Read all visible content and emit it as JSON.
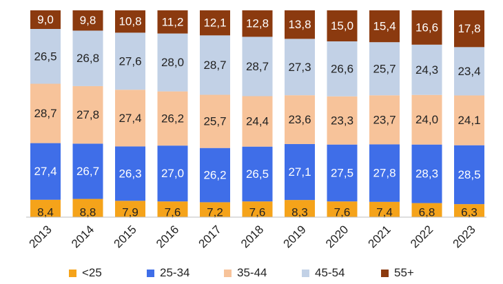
{
  "chart_data": {
    "type": "bar",
    "stacked": true,
    "orientation": "vertical",
    "categories": [
      "2013",
      "2014",
      "2015",
      "2016",
      "2017",
      "2018",
      "2019",
      "2020",
      "2021",
      "2022",
      "2023"
    ],
    "series": [
      {
        "name": "<25",
        "color": "#f5a31a",
        "values": [
          8.4,
          8.8,
          7.9,
          7.6,
          7.2,
          7.6,
          8.3,
          7.6,
          7.4,
          6.8,
          6.3
        ],
        "labels": [
          "8,4",
          "8,8",
          "7,9",
          "7,6",
          "7,2",
          "7,6",
          "8,3",
          "7,6",
          "7,4",
          "6,8",
          "6,3"
        ]
      },
      {
        "name": "25-34",
        "color": "#3f6ee8",
        "values": [
          27.4,
          26.7,
          26.3,
          27.0,
          26.2,
          26.5,
          27.1,
          27.5,
          27.8,
          28.3,
          28.5
        ],
        "labels": [
          "27,4",
          "26,7",
          "26,3",
          "27,0",
          "26,2",
          "26,5",
          "27,1",
          "27,5",
          "27,8",
          "28,3",
          "28,5"
        ]
      },
      {
        "name": "35-44",
        "color": "#f7c39a",
        "values": [
          28.7,
          27.8,
          27.4,
          26.2,
          25.7,
          24.4,
          23.6,
          23.3,
          23.7,
          24.0,
          24.1
        ],
        "labels": [
          "28,7",
          "27,8",
          "27,4",
          "26,2",
          "25,7",
          "24,4",
          "23,6",
          "23,3",
          "23,7",
          "24,0",
          "24,1"
        ]
      },
      {
        "name": "45-54",
        "color": "#c2d1e6",
        "values": [
          26.5,
          26.8,
          27.6,
          28.0,
          28.7,
          28.7,
          27.3,
          26.6,
          25.7,
          24.3,
          23.4
        ],
        "labels": [
          "26,5",
          "26,8",
          "27,6",
          "28,0",
          "28,7",
          "28,7",
          "27,3",
          "26,6",
          "25,7",
          "24,3",
          "23,4"
        ]
      },
      {
        "name": "55+",
        "color": "#8b3a0f",
        "values": [
          9.0,
          9.8,
          10.8,
          11.2,
          12.1,
          12.8,
          13.8,
          15.0,
          15.4,
          16.6,
          17.8
        ],
        "labels": [
          "9,0",
          "9,8",
          "10,8",
          "11,2",
          "12,1",
          "12,8",
          "13,8",
          "15,0",
          "15,4",
          "16,6",
          "17,8"
        ]
      }
    ],
    "label_colors": {
      "<25": "#222222",
      "25-34": "#ffffff",
      "35-44": "#222222",
      "45-54": "#222222",
      "55+": "#ffffff"
    },
    "ylim": [
      0,
      100
    ],
    "grid": false,
    "legend": "bottom",
    "title": "",
    "xlabel": "",
    "ylabel": ""
  }
}
